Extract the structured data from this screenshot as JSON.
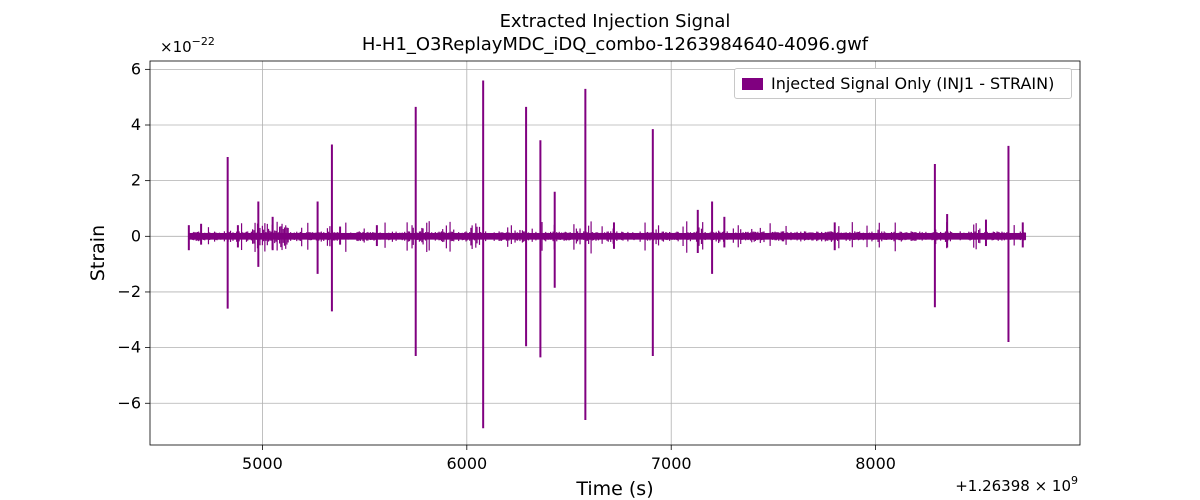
{
  "chart_data": {
    "type": "line",
    "title": "Extracted Injection Signal",
    "subtitle": "H-H1_O3ReplayMDC_iDQ_combo-1263984640-4096.gwf",
    "xlabel": "Time (s)",
    "ylabel": "Strain",
    "x_offset_label": "+1.26398 × 10",
    "x_offset_exp": "9",
    "y_scale_label": "×10",
    "y_scale_exp": "−22",
    "xlim": [
      4450,
      9000
    ],
    "ylim": [
      -7.5,
      6.3
    ],
    "xticks": [
      5000,
      6000,
      7000,
      8000
    ],
    "xtick_labels": [
      "5000",
      "6000",
      "7000",
      "8000"
    ],
    "yticks": [
      -6,
      -4,
      -2,
      0,
      2,
      4,
      6
    ],
    "ytick_labels": [
      "−6",
      "−4",
      "−2",
      "0",
      "2",
      "4",
      "6"
    ],
    "grid": true,
    "legend_position": "top-right",
    "series": [
      {
        "name": "Injected Signal Only (INJ1 - STRAIN)",
        "color": "#800080",
        "x_range": [
          4640,
          8736
        ],
        "spikes": [
          {
            "x": 4640,
            "max": 0.4,
            "min": -0.5
          },
          {
            "x": 4700,
            "max": 0.45,
            "min": -0.3
          },
          {
            "x": 4830,
            "max": 2.85,
            "min": -2.6
          },
          {
            "x": 4880,
            "max": 0.4,
            "min": -0.4
          },
          {
            "x": 4980,
            "max": 1.25,
            "min": -1.1
          },
          {
            "x": 5050,
            "max": 0.7,
            "min": -0.5
          },
          {
            "x": 5270,
            "max": 1.25,
            "min": -1.35
          },
          {
            "x": 5340,
            "max": 3.3,
            "min": -2.7
          },
          {
            "x": 5380,
            "max": 0.35,
            "min": -0.3
          },
          {
            "x": 5560,
            "max": 0.4,
            "min": -0.35
          },
          {
            "x": 5750,
            "max": 4.65,
            "min": -4.3
          },
          {
            "x": 6080,
            "max": 5.6,
            "min": -6.9
          },
          {
            "x": 6290,
            "max": 4.65,
            "min": -3.95
          },
          {
            "x": 6360,
            "max": 3.45,
            "min": -4.35
          },
          {
            "x": 6430,
            "max": 1.6,
            "min": -1.85
          },
          {
            "x": 6580,
            "max": 5.3,
            "min": -6.6
          },
          {
            "x": 6720,
            "max": 0.5,
            "min": -0.45
          },
          {
            "x": 6910,
            "max": 3.85,
            "min": -4.3
          },
          {
            "x": 7130,
            "max": 0.95,
            "min": -0.6
          },
          {
            "x": 7200,
            "max": 1.25,
            "min": -1.35
          },
          {
            "x": 7260,
            "max": 0.7,
            "min": -0.4
          },
          {
            "x": 7800,
            "max": 0.5,
            "min": -0.5
          },
          {
            "x": 8290,
            "max": 2.6,
            "min": -2.55
          },
          {
            "x": 8350,
            "max": 0.8,
            "min": -0.4
          },
          {
            "x": 8540,
            "max": 0.6,
            "min": -0.35
          },
          {
            "x": 8650,
            "max": 3.25,
            "min": -3.8
          },
          {
            "x": 8720,
            "max": 0.5,
            "min": -0.4
          }
        ]
      }
    ]
  }
}
